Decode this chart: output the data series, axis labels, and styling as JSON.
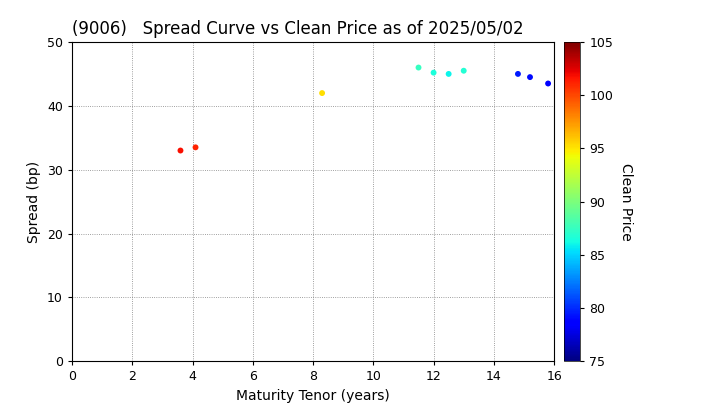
{
  "title": "(9006)   Spread Curve vs Clean Price as of 2025/05/02",
  "xlabel": "Maturity Tenor (years)",
  "ylabel": "Spread (bp)",
  "colorbar_label": "Clean Price",
  "points": [
    {
      "tenor": 3.6,
      "spread": 33.0,
      "price": 101.8
    },
    {
      "tenor": 4.1,
      "spread": 33.5,
      "price": 101.2
    },
    {
      "tenor": 8.3,
      "spread": 42.0,
      "price": 95.2
    },
    {
      "tenor": 11.5,
      "spread": 46.0,
      "price": 87.5
    },
    {
      "tenor": 12.0,
      "spread": 45.2,
      "price": 86.5
    },
    {
      "tenor": 12.5,
      "spread": 45.0,
      "price": 86.0
    },
    {
      "tenor": 13.0,
      "spread": 45.5,
      "price": 86.8
    },
    {
      "tenor": 14.8,
      "spread": 45.0,
      "price": 79.5
    },
    {
      "tenor": 15.2,
      "spread": 44.5,
      "price": 79.0
    },
    {
      "tenor": 15.8,
      "spread": 43.5,
      "price": 78.5
    }
  ],
  "xlim": [
    0,
    16
  ],
  "ylim": [
    0,
    50
  ],
  "xticks": [
    0,
    2,
    4,
    6,
    8,
    10,
    12,
    14,
    16
  ],
  "yticks": [
    0,
    10,
    20,
    30,
    40,
    50
  ],
  "cmap": "jet",
  "clim": [
    75,
    105
  ],
  "cticks": [
    75,
    80,
    85,
    90,
    95,
    100,
    105
  ],
  "marker_size": 18,
  "background_color": "#ffffff",
  "title_fontsize": 12,
  "label_fontsize": 10,
  "tick_fontsize": 9,
  "colorbar_tick_fontsize": 9
}
